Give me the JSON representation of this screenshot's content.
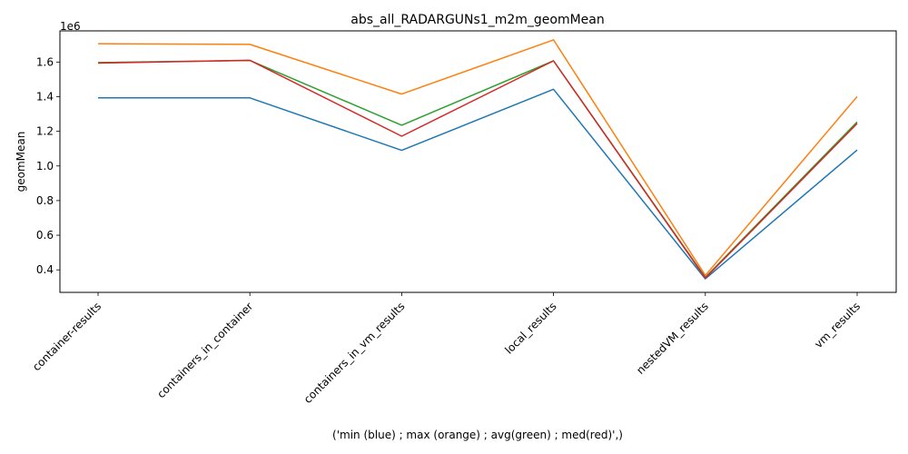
{
  "chart_data": {
    "type": "line",
    "title": "abs_all_RADARGUNs1_m2m_geomMean",
    "xlabel": "('min (blue) ; max (orange) ; avg(green) ; med(red)',)",
    "ylabel": "geomMean",
    "y_offset_label": "1e6",
    "categories": [
      "container-results",
      "containers_in_container",
      "containers_in_vm_results",
      "local_results",
      "nestedVM_results",
      "vm_results"
    ],
    "ylim": [
      0.27,
      1.78
    ],
    "y_ticks": [
      0.4,
      0.6,
      0.8,
      1.0,
      1.2,
      1.4,
      1.6
    ],
    "y_tick_labels": [
      "0.4",
      "0.6",
      "0.8",
      "1.0",
      "1.2",
      "1.4",
      "1.6"
    ],
    "grid": false,
    "legend": "none",
    "series": [
      {
        "key": "min",
        "color": "#1f77b4",
        "values": [
          1.393,
          1.393,
          1.09,
          1.443,
          0.348,
          1.092
        ]
      },
      {
        "key": "max",
        "color": "#ff7f0e",
        "values": [
          1.706,
          1.702,
          1.415,
          1.728,
          0.368,
          1.401
        ]
      },
      {
        "key": "avg",
        "color": "#2ca02c",
        "values": [
          1.597,
          1.609,
          1.235,
          1.607,
          0.357,
          1.254
        ]
      },
      {
        "key": "med",
        "color": "#d62728",
        "values": [
          1.594,
          1.61,
          1.172,
          1.607,
          0.353,
          1.245
        ]
      }
    ]
  }
}
